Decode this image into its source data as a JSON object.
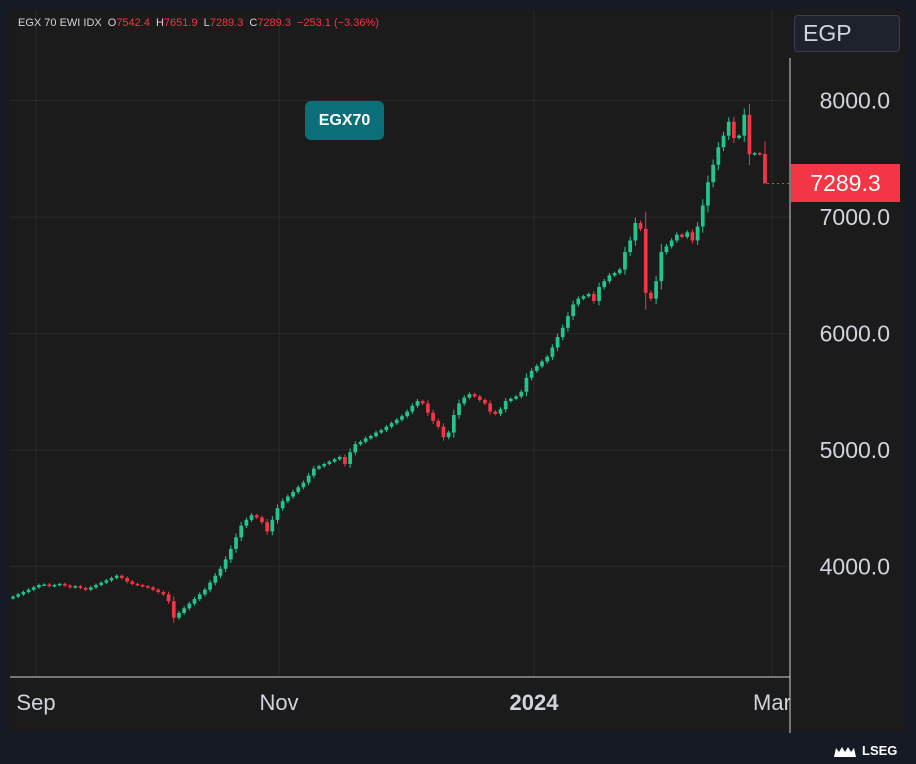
{
  "header": {
    "symbol": "EGX 70 EWI IDX",
    "open_label": "O",
    "open": "7542.4",
    "high_label": "H",
    "high": "7651.9",
    "low_label": "L",
    "low": "7289.3",
    "close_label": "C",
    "close": "7289.3",
    "change": "−253.1 (−3.36%)"
  },
  "currency_button": "EGP",
  "badge_label": "EGX70",
  "last_price": "7289.3",
  "logo_text": "LSEG",
  "colors": {
    "up": "#26a69a",
    "down": "#ef5350",
    "up_bright": "#22c58b",
    "down_bright": "#f23645",
    "grid": "#2a2a2a",
    "text": "#d1d4dc"
  },
  "chart_data": {
    "type": "candlestick",
    "title": "EGX 70 EWI IDX",
    "currency": "EGP",
    "x_ticks": [
      "Sep",
      "Nov",
      "2024",
      "Mar"
    ],
    "y_ticks": [
      "4000.0",
      "5000.0",
      "6000.0",
      "7000.0",
      "8000.0"
    ],
    "ylim": [
      3050,
      8350
    ],
    "grid": true,
    "last": 7289.3,
    "closes": [
      3740,
      3760,
      3780,
      3800,
      3820,
      3840,
      3845,
      3830,
      3840,
      3850,
      3835,
      3820,
      3830,
      3815,
      3800,
      3820,
      3840,
      3860,
      3880,
      3900,
      3920,
      3900,
      3870,
      3850,
      3840,
      3830,
      3820,
      3800,
      3780,
      3760,
      3700,
      3560,
      3600,
      3640,
      3680,
      3720,
      3760,
      3800,
      3860,
      3920,
      3980,
      4060,
      4150,
      4250,
      4350,
      4400,
      4440,
      4420,
      4380,
      4300,
      4400,
      4500,
      4560,
      4600,
      4640,
      4680,
      4720,
      4780,
      4840,
      4860,
      4880,
      4900,
      4920,
      4940,
      4880,
      4980,
      5050,
      5070,
      5100,
      5120,
      5150,
      5170,
      5200,
      5230,
      5260,
      5290,
      5330,
      5380,
      5420,
      5400,
      5320,
      5250,
      5200,
      5110,
      5150,
      5300,
      5400,
      5450,
      5480,
      5460,
      5430,
      5400,
      5330,
      5310,
      5350,
      5420,
      5440,
      5460,
      5500,
      5620,
      5680,
      5720,
      5760,
      5800,
      5880,
      5970,
      6050,
      6150,
      6250,
      6300,
      6320,
      6340,
      6280,
      6400,
      6450,
      6500,
      6520,
      6550,
      6700,
      6800,
      6950,
      6900,
      6350,
      6300,
      6450,
      6700,
      6750,
      6800,
      6850,
      6830,
      6870,
      6800,
      6920,
      7100,
      7300,
      7450,
      7600,
      7700,
      7820,
      7680,
      7700,
      7880,
      7540,
      7550,
      7540,
      7289.3
    ],
    "last_candle": {
      "open": 7542.4,
      "high": 7651.9,
      "low": 7289.3,
      "close": 7289.3
    }
  }
}
